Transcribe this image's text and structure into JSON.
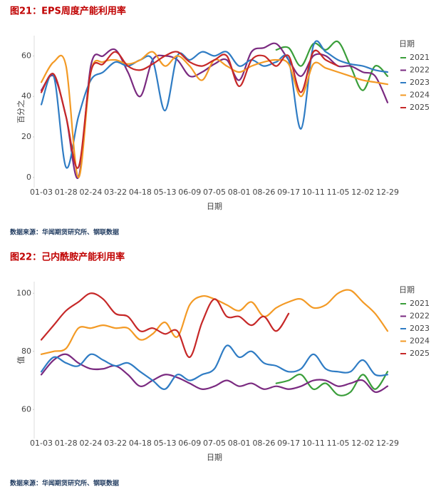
{
  "chart_data": [
    {
      "type": "line",
      "title": "图21：EPS周度产能利用率",
      "xlabel": "日期",
      "ylabel": "百分之",
      "legend_title": "日期",
      "legend": "right",
      "grid": false,
      "source": "数据来源：华闻期货研究所、钢联数据",
      "categories": [
        "01-03",
        null,
        "01-28",
        null,
        "02-24",
        null,
        "03-22",
        null,
        "04-18",
        null,
        "05-13",
        null,
        "06-09",
        null,
        "07-05",
        null,
        "08-01",
        null,
        "08-26",
        null,
        "09-17",
        null,
        "10-11",
        null,
        "11-05",
        null,
        "12-02",
        null,
        "12-29"
      ],
      "ylim": [
        -5,
        70
      ],
      "yticks": [
        0,
        20,
        40,
        60
      ],
      "series": [
        {
          "name": "2021",
          "color": "#3a9e3a",
          "values": [
            null,
            null,
            null,
            null,
            null,
            null,
            null,
            null,
            null,
            null,
            null,
            null,
            null,
            null,
            null,
            null,
            null,
            null,
            null,
            63,
            64,
            55,
            66,
            63,
            67,
            55,
            43,
            55,
            50
          ]
        },
        {
          "name": "2022",
          "color": "#7a2a80",
          "values": [
            43,
            50,
            30,
            0,
            55,
            60,
            63,
            52,
            40,
            58,
            60,
            58,
            50,
            52,
            56,
            58,
            48,
            62,
            64,
            66,
            58,
            50,
            60,
            60,
            55,
            55,
            52,
            50,
            37
          ]
        },
        {
          "name": "2023",
          "color": "#2f7cc4",
          "values": [
            36,
            50,
            5,
            30,
            48,
            52,
            57,
            55,
            58,
            58,
            33,
            60,
            58,
            62,
            60,
            62,
            55,
            58,
            55,
            57,
            58,
            24,
            65,
            62,
            58,
            56,
            55,
            53,
            52
          ]
        },
        {
          "name": "2024",
          "color": "#f39a25",
          "values": [
            47,
            57,
            55,
            0,
            52,
            57,
            58,
            56,
            58,
            62,
            55,
            60,
            55,
            48,
            58,
            55,
            52,
            55,
            57,
            58,
            56,
            40,
            56,
            54,
            52,
            50,
            48,
            47,
            46
          ]
        },
        {
          "name": "2025",
          "color": "#c62828",
          "values": [
            42,
            51,
            30,
            5,
            52,
            56,
            62,
            55,
            53,
            56,
            60,
            62,
            57,
            55,
            58,
            60,
            45,
            58,
            60,
            55,
            60,
            42,
            62,
            58,
            55,
            null,
            null,
            null,
            null
          ]
        }
      ]
    },
    {
      "type": "line",
      "title": "图22：己内酰胺产能利用率",
      "xlabel": "日期",
      "ylabel": "值",
      "legend_title": "日期",
      "legend": "right",
      "grid": false,
      "source": "数据来源：华闻期货研究所、钢联数据",
      "categories": [
        "01-03",
        null,
        "01-28",
        null,
        "02-24",
        null,
        "03-22",
        null,
        "04-18",
        null,
        "05-13",
        null,
        "06-09",
        null,
        "07-05",
        null,
        "08-01",
        null,
        "08-26",
        null,
        "09-17",
        null,
        "10-11",
        null,
        "11-05",
        null,
        "12-02",
        null,
        "12-29"
      ],
      "ylim": [
        50,
        104
      ],
      "yticks": [
        60,
        80,
        100
      ],
      "series": [
        {
          "name": "2021",
          "color": "#3a9e3a",
          "values": [
            null,
            null,
            null,
            null,
            null,
            null,
            null,
            null,
            null,
            null,
            null,
            null,
            null,
            null,
            null,
            null,
            null,
            null,
            null,
            69,
            70,
            72,
            67,
            69,
            65,
            66,
            72,
            67,
            73
          ]
        },
        {
          "name": "2022",
          "color": "#7a2a80",
          "values": [
            72,
            77,
            79,
            76,
            74,
            74,
            75,
            72,
            68,
            70,
            72,
            71,
            69,
            67,
            68,
            70,
            68,
            69,
            67,
            68,
            67,
            68,
            70,
            70,
            68,
            69,
            70,
            66,
            68
          ]
        },
        {
          "name": "2023",
          "color": "#2f7cc4",
          "values": [
            73,
            78,
            76,
            75,
            79,
            77,
            75,
            76,
            73,
            70,
            67,
            72,
            70,
            72,
            74,
            82,
            78,
            80,
            76,
            75,
            73,
            74,
            79,
            74,
            73,
            73,
            77,
            72,
            72
          ]
        },
        {
          "name": "2024",
          "color": "#f39a25",
          "values": [
            79,
            80,
            81,
            88,
            88,
            89,
            88,
            88,
            84,
            86,
            90,
            85,
            96,
            99,
            98,
            96,
            94,
            97,
            92,
            95,
            97,
            98,
            95,
            96,
            100,
            101,
            97,
            93,
            87
          ]
        },
        {
          "name": "2025",
          "color": "#c62828",
          "values": [
            84,
            89,
            94,
            97,
            100,
            98,
            93,
            92,
            87,
            88,
            86,
            87,
            78,
            90,
            98,
            92,
            92,
            89,
            92,
            87,
            93,
            null,
            null,
            null,
            null,
            null,
            null,
            null,
            null
          ]
        }
      ]
    }
  ]
}
